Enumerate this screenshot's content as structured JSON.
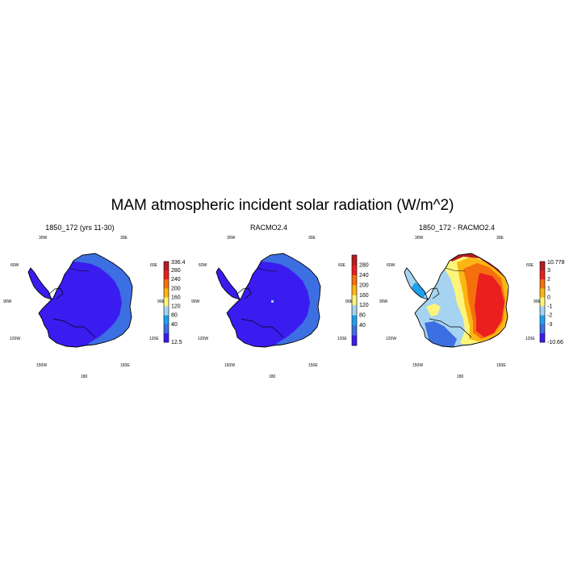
{
  "title": "MAM atmospheric incident solar radiation (W/m^2)",
  "lon_labels": {
    "top_left": "30W",
    "top_right": "30E",
    "upper_left": "60W",
    "upper_right": "60E",
    "mid_left": "90W",
    "mid_right": "90E",
    "lower_left": "120W",
    "lower_right": "120E",
    "bottom_left": "150W",
    "bottom_right": "150E",
    "bottom": "180"
  },
  "panels": [
    {
      "title": "1850_172 (yrs 11-30)",
      "colorbar": {
        "colors": [
          "#3a1cf0",
          "#3c6fe2",
          "#1ea1ee",
          "#a6d4f0",
          "#fdf57a",
          "#fbb514",
          "#f5700d",
          "#ea1f1e",
          "#b81c22"
        ],
        "labels": [
          "12.5",
          "40",
          "80",
          "120",
          "160",
          "200",
          "240",
          "280",
          "336.4"
        ]
      }
    },
    {
      "title": "RACMO2.4",
      "colorbar": {
        "colors": [
          "#3a1cf0",
          "#3c6fe2",
          "#1ea1ee",
          "#a6d4f0",
          "#fdf57a",
          "#fbb514",
          "#f5700d",
          "#ea1f1e",
          "#b81c22"
        ],
        "labels": [
          "40",
          "80",
          "120",
          "160",
          "200",
          "240",
          "280"
        ]
      }
    },
    {
      "title": "1850_172 - RACMO2.4",
      "colorbar": {
        "colors": [
          "#3a1cf0",
          "#3c6fe2",
          "#1ea1ee",
          "#a6d4f0",
          "#fdf57a",
          "#fbb514",
          "#f5700d",
          "#ea1f1e",
          "#b81c22"
        ],
        "labels": [
          "-10.66",
          "-3",
          "-2",
          "-1",
          "0",
          "1",
          "2",
          "3",
          "10.778"
        ]
      }
    }
  ]
}
